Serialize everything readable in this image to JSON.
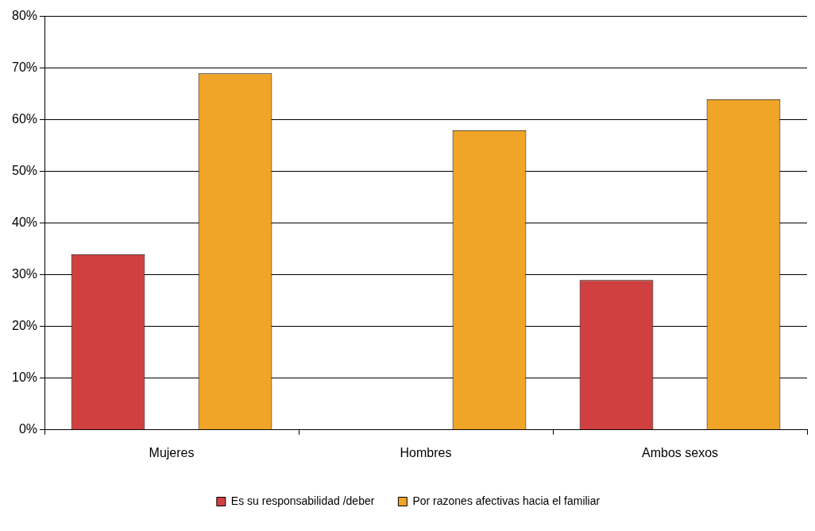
{
  "chart_data": {
    "type": "bar",
    "categories": [
      "Mujeres",
      "Hombres",
      "Ambos sexos"
    ],
    "series": [
      {
        "name": "Es su responsabilidad /deber",
        "color": "#d04040",
        "values": [
          34,
          null,
          29
        ]
      },
      {
        "name": "Por razones afectivas hacia el familiar",
        "color": "#f0a428",
        "values": [
          69,
          58,
          64
        ]
      }
    ],
    "ylim": [
      0,
      80
    ],
    "yticks": [
      {
        "value": 0,
        "label": "0%"
      },
      {
        "value": 10,
        "label": "10%"
      },
      {
        "value": 20,
        "label": "20%"
      },
      {
        "value": 30,
        "label": "30%"
      },
      {
        "value": 40,
        "label": "40%"
      },
      {
        "value": 50,
        "label": "50%"
      },
      {
        "value": 60,
        "label": "60%"
      },
      {
        "value": 70,
        "label": "70%"
      },
      {
        "value": 80,
        "label": "80%"
      }
    ],
    "grid": "y",
    "legend": "bottom"
  }
}
